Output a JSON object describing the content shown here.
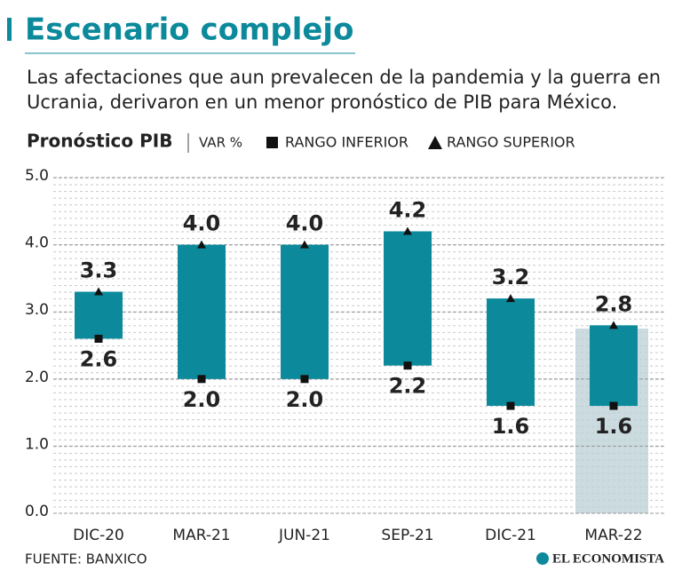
{
  "chart_data": {
    "type": "range-bar",
    "title": "Escenario complejo",
    "subtitle_lines": [
      "Las afectaciones que aun prevalecen de la pandemia y la guerra en",
      "Ucrania, derivaron en un menor pronóstico de PIB para México."
    ],
    "ylabel": "Pronóstico PIB",
    "yunit": "VAR %",
    "categories": [
      "DIC-20",
      "MAR-21",
      "JUN-21",
      "SEP-21",
      "DIC-21",
      "MAR-22"
    ],
    "series": [
      {
        "name": "RANGO INFERIOR",
        "color": "#111111",
        "values": [
          2.6,
          2.0,
          2.0,
          2.2,
          1.6,
          1.6
        ],
        "value_labels": [
          "2.6",
          "2.0",
          "2.0",
          "2.2",
          "1.6",
          "1.6"
        ]
      },
      {
        "name": "RANGO SUPERIOR",
        "color": "#111111",
        "values": [
          3.3,
          4.0,
          4.0,
          4.2,
          3.2,
          2.8
        ],
        "value_labels": [
          "3.3",
          "4.0",
          "4.0",
          "4.2",
          "3.2",
          "2.8"
        ]
      }
    ],
    "bar_color": "#0c8a9c",
    "ylim": [
      0,
      5
    ],
    "yticks": [
      {
        "value": 0,
        "label": "0.0"
      },
      {
        "value": 1,
        "label": "1.0"
      },
      {
        "value": 2,
        "label": "2.0"
      },
      {
        "value": 3,
        "label": "3.0"
      },
      {
        "value": 4,
        "label": "4.0"
      },
      {
        "value": 5,
        "label": "5.0"
      }
    ],
    "grid": true,
    "source": "FUENTE: BANXICO",
    "brand": "EL ECONOMISTA"
  }
}
